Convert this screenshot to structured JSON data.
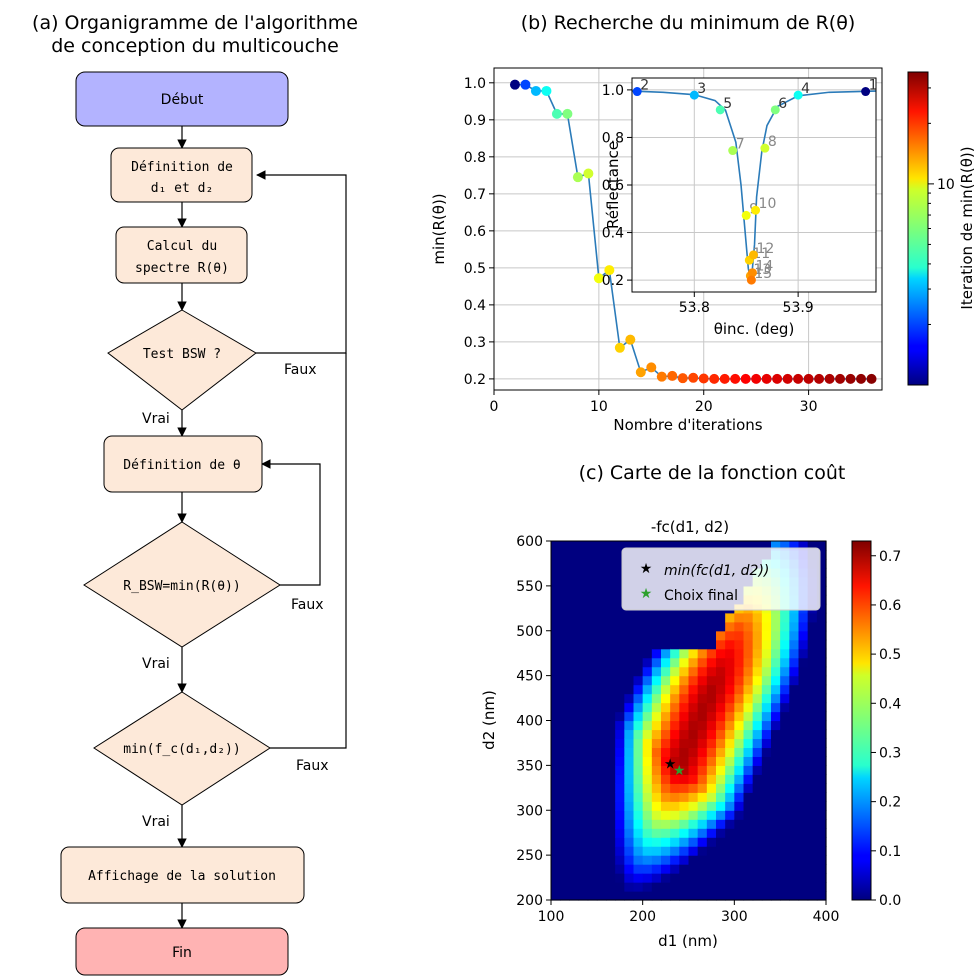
{
  "panel_a": {
    "title_line1": "(a) Organigramme de l'algorithme",
    "title_line2": "de conception du multicouche",
    "nodes": {
      "debut": "Début",
      "def_d_line1": "Définition de",
      "def_d_line2": "d₁ et d₂",
      "calc_line1": "Calcul du",
      "calc_line2": "spectre R(θ)",
      "test_bsw": "Test BSW ?",
      "def_theta": "Définition de θ",
      "rbsw": "R_BSW=min(R(θ))",
      "minfc": "min(f_c(d₁,d₂))",
      "affichage": "Affichage de la solution",
      "fin": "Fin"
    },
    "edge_labels": {
      "vrai": "Vrai",
      "faux": "Faux"
    },
    "colors": {
      "start": "#b3b3ff",
      "process": "#fde9d9",
      "end": "#ffb3b3"
    }
  },
  "chart_data": [
    {
      "type": "line",
      "panel_title": "(b) Recherche du minimum de R(θ)",
      "xlabel": "Nombre d'iterations",
      "ylabel": "min(R(θ))",
      "xlim": [
        0,
        37
      ],
      "ylim": [
        0.17,
        1.04
      ],
      "xticks": [
        0,
        10,
        20,
        30
      ],
      "yticks": [
        0.2,
        0.3,
        0.4,
        0.5,
        0.6,
        0.7,
        0.8,
        0.9,
        1.0
      ],
      "grid": true,
      "x": [
        2,
        3,
        4,
        5,
        6,
        7,
        8,
        9,
        10,
        11,
        12,
        13,
        14,
        15,
        16,
        17,
        18,
        19,
        20,
        21,
        22,
        23,
        24,
        25,
        26,
        27,
        28,
        29,
        30,
        31,
        32,
        33,
        34,
        35,
        36
      ],
      "y": [
        0.995,
        0.995,
        0.978,
        0.978,
        0.916,
        0.916,
        0.745,
        0.755,
        0.472,
        0.494,
        0.284,
        0.306,
        0.218,
        0.231,
        0.206,
        0.208,
        0.202,
        0.203,
        0.201,
        0.2,
        0.2,
        0.2,
        0.2,
        0.2,
        0.2,
        0.2,
        0.2,
        0.2,
        0.2,
        0.2,
        0.2,
        0.2,
        0.2,
        0.2,
        0.2
      ],
      "colorbar": {
        "label": "Iteration de min(R(θ))",
        "tick": "10",
        "tick_value": 10,
        "range": [
          1,
          36
        ],
        "scale": "log"
      }
    },
    {
      "type": "line",
      "inset": true,
      "xlabel": "θinc. (deg)",
      "ylabel": "Réflectance",
      "xlim": [
        53.74,
        53.975
      ],
      "ylim": [
        0.15,
        1.05
      ],
      "xticks": [
        "53.8",
        "53.9"
      ],
      "xtick_values": [
        53.8,
        53.9
      ],
      "yticks": [
        "0.2",
        "0.4",
        "0.6",
        "0.8",
        "1.0"
      ],
      "ytick_values": [
        0.2,
        0.4,
        0.6,
        0.8,
        1.0
      ],
      "grid": true,
      "curve_x": [
        53.74,
        53.77,
        53.8,
        53.82,
        53.83,
        53.84,
        53.845,
        53.85,
        53.852,
        53.854,
        53.856,
        53.858,
        53.86,
        53.865,
        53.87,
        53.88,
        53.9,
        53.93,
        53.975
      ],
      "curve_y": [
        0.995,
        0.99,
        0.98,
        0.955,
        0.915,
        0.78,
        0.6,
        0.35,
        0.25,
        0.205,
        0.25,
        0.35,
        0.55,
        0.74,
        0.85,
        0.93,
        0.975,
        0.99,
        0.995
      ],
      "points": [
        {
          "label": "1",
          "x": 53.965,
          "y": 0.993
        },
        {
          "label": "2",
          "x": 53.745,
          "y": 0.993
        },
        {
          "label": "3",
          "x": 53.8,
          "y": 0.978
        },
        {
          "label": "5",
          "x": 53.825,
          "y": 0.916
        },
        {
          "label": "4",
          "x": 53.9,
          "y": 0.978
        },
        {
          "label": "6",
          "x": 53.878,
          "y": 0.916
        },
        {
          "label": "7",
          "x": 53.837,
          "y": 0.745
        },
        {
          "label": "8",
          "x": 53.868,
          "y": 0.755
        },
        {
          "label": "9",
          "x": 53.85,
          "y": 0.472
        },
        {
          "label": "10",
          "x": 53.859,
          "y": 0.494
        },
        {
          "label": "11",
          "x": 53.853,
          "y": 0.284
        },
        {
          "label": "12",
          "x": 53.857,
          "y": 0.306
        },
        {
          "label": "13",
          "x": 53.854,
          "y": 0.218
        },
        {
          "label": "14",
          "x": 53.856,
          "y": 0.231
        },
        {
          "label": "15",
          "x": 53.855,
          "y": 0.2
        }
      ]
    },
    {
      "type": "heatmap",
      "panel_title": "(c) Carte de la fonction coût",
      "title": "-fc(d1, d2)",
      "xlabel": "d1 (nm)",
      "ylabel": "d2 (nm)",
      "xlim": [
        100,
        400
      ],
      "ylim": [
        200,
        600
      ],
      "xticks": [
        100,
        200,
        300,
        400
      ],
      "yticks": [
        200,
        250,
        300,
        350,
        400,
        450,
        500,
        550,
        600
      ],
      "colorbar": {
        "ticks": [
          "0.0",
          "0.1",
          "0.2",
          "0.3",
          "0.4",
          "0.5",
          "0.6",
          "0.7"
        ],
        "range": [
          0,
          0.73
        ]
      },
      "markers": [
        {
          "name": "min(fc(d1, d2))",
          "x": 230,
          "y": 352,
          "color": "#000000"
        },
        {
          "name": "Choix final",
          "x": 240,
          "y": 345,
          "color": "#2ca02c"
        }
      ],
      "legend_location": "upper-right"
    }
  ]
}
